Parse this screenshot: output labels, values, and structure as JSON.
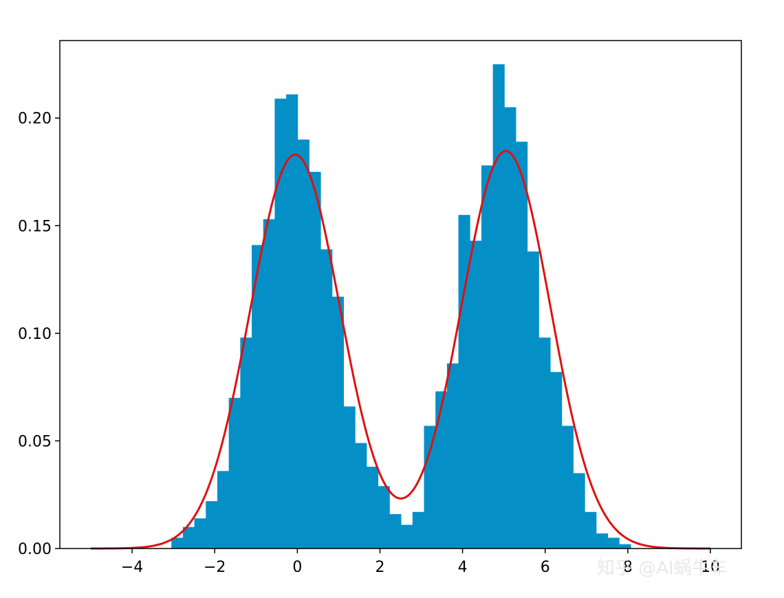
{
  "chart_data": {
    "type": "bar",
    "title": "",
    "xlabel": "",
    "ylabel": "",
    "xlim": [
      -5.75,
      10.75
    ],
    "ylim": [
      0,
      0.236
    ],
    "grid": false,
    "legend": "none",
    "xticks": [
      -4,
      -2,
      0,
      2,
      4,
      6,
      8,
      10
    ],
    "xtick_labels": [
      "−4",
      "−2",
      "0",
      "2",
      "4",
      "6",
      "8",
      "10"
    ],
    "yticks": [
      0,
      0.05,
      0.1,
      0.15,
      0.2
    ],
    "ytick_labels": [
      "0.00",
      "0.05",
      "0.10",
      "0.15",
      "0.20"
    ],
    "histogram": {
      "name": "",
      "color": "#0490c7",
      "bin_start": -3.05,
      "bin_width": 0.278,
      "values": [
        0.005,
        0.01,
        0.014,
        0.022,
        0.036,
        0.07,
        0.098,
        0.141,
        0.153,
        0.209,
        0.211,
        0.19,
        0.175,
        0.139,
        0.117,
        0.066,
        0.049,
        0.038,
        0.029,
        0.016,
        0.011,
        0.017,
        0.057,
        0.073,
        0.086,
        0.155,
        0.143,
        0.178,
        0.225,
        0.205,
        0.189,
        0.138,
        0.098,
        0.082,
        0.057,
        0.035,
        0.017,
        0.007,
        0.005,
        0.002
      ]
    },
    "density_curve": {
      "name": "",
      "color": "#e01010",
      "components": [
        {
          "weight": 0.5,
          "mean": -0.05,
          "sd": 1.09
        },
        {
          "weight": 0.5,
          "mean": 5.05,
          "sd": 1.08
        }
      ],
      "x_range": [
        -5,
        10
      ]
    }
  },
  "watermark": {
    "text": "知乎 @AI蜗牛车"
  }
}
